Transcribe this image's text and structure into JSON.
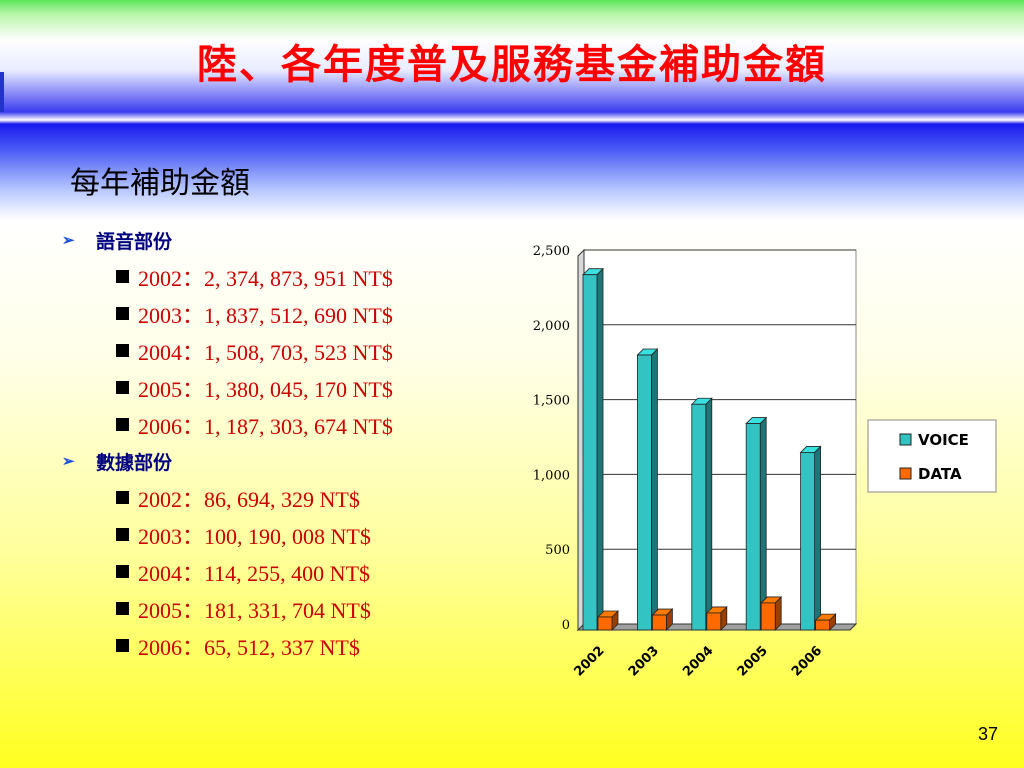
{
  "title": "陸、各年度普及服務基金補助金額",
  "subtitle": "每年補助金額",
  "sections": [
    {
      "heading": "語音部份",
      "items": [
        "2002：2, 374, 873, 951  NT$",
        "2003：1, 837, 512, 690  NT$",
        "2004：1, 508, 703, 523  NT$",
        "2005：1, 380, 045, 170  NT$",
        "2006：1, 187, 303, 674  NT$"
      ]
    },
    {
      "heading": "數據部份",
      "items": [
        "2002：86, 694, 329  NT$",
        "2003：100, 190, 008  NT$",
        "2004：114, 255, 400  NT$",
        "2005：181, 331, 704  NT$",
        "2006：65, 512, 337  NT$"
      ]
    }
  ],
  "page_number": "37",
  "colors": {
    "title": "#ff0000",
    "voice": "#33c3c3",
    "data": "#ff6a00"
  },
  "chart_data": {
    "type": "bar",
    "categories": [
      "2002",
      "2003",
      "2004",
      "2005",
      "2006"
    ],
    "series": [
      {
        "name": "VOICE",
        "values": [
          2375,
          1838,
          1509,
          1380,
          1187
        ]
      },
      {
        "name": "DATA",
        "values": [
          87,
          100,
          114,
          181,
          66
        ]
      }
    ],
    "title": "",
    "xlabel": "",
    "ylabel": "",
    "ylim": [
      0,
      2500
    ],
    "yticks": [
      0,
      500,
      1000,
      1500,
      2000,
      2500
    ],
    "ytick_labels": [
      "0",
      "500",
      "1,000",
      "1,500",
      "2,000",
      "2,500"
    ],
    "legend_position": "right",
    "grid": true,
    "style": "3d-columns"
  }
}
